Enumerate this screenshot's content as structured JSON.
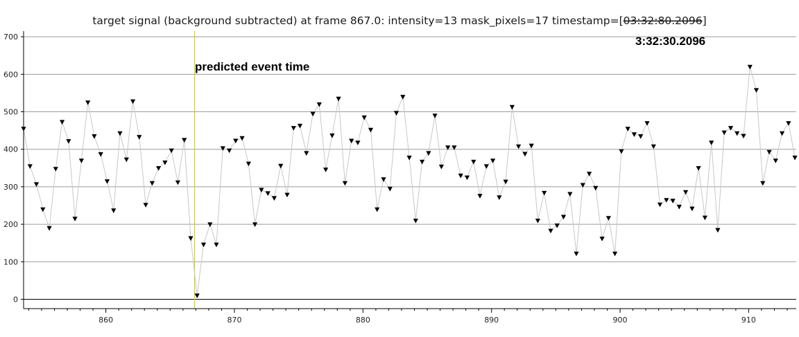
{
  "chart_data": {
    "type": "scatter",
    "title_prefix": "target signal (background subtracted) at frame 867.0: intensity=13 mask_pixels=17 timestamp=[",
    "title_struck": "03:32:80.2096",
    "title_suffix": "]",
    "xlabel": "",
    "ylabel": "",
    "xlim": [
      853.6,
      913.7
    ],
    "ylim": [
      -25,
      715
    ],
    "xticks": [
      860,
      870,
      880,
      890,
      900,
      910
    ],
    "yticks": [
      0,
      100,
      200,
      300,
      400,
      500,
      600,
      700
    ],
    "grid": true,
    "marker": "triangle-down",
    "line_color": "#c8c8c8",
    "marker_color": "#000000",
    "event_line": {
      "x": 866.9,
      "color": "#c8c860",
      "label": "predicted event time"
    },
    "annotation": "3:32:30.2096",
    "x": [
      853.6,
      854.1,
      854.6,
      855.1,
      855.6,
      856.1,
      856.6,
      857.1,
      857.6,
      858.1,
      858.6,
      859.1,
      859.6,
      860.1,
      860.6,
      861.1,
      861.6,
      862.1,
      862.6,
      863.1,
      863.6,
      864.1,
      864.6,
      865.1,
      865.6,
      866.1,
      866.6,
      867.1,
      867.6,
      868.1,
      868.6,
      869.1,
      869.6,
      870.1,
      870.6,
      871.1,
      871.6,
      872.1,
      872.6,
      873.1,
      873.6,
      874.1,
      874.6,
      875.1,
      875.6,
      876.1,
      876.6,
      877.1,
      877.6,
      878.1,
      878.6,
      879.1,
      879.6,
      880.1,
      880.6,
      881.1,
      881.6,
      882.1,
      882.6,
      883.1,
      883.6,
      884.1,
      884.6,
      885.1,
      885.6,
      886.1,
      886.6,
      887.1,
      887.6,
      888.1,
      888.6,
      889.1,
      889.6,
      890.1,
      890.6,
      891.1,
      891.6,
      892.1,
      892.6,
      893.1,
      893.6,
      894.1,
      894.6,
      895.1,
      895.6,
      896.1,
      896.6,
      897.1,
      897.6,
      898.1,
      898.6,
      899.1,
      899.6,
      900.1,
      900.6,
      901.1,
      901.6,
      902.1,
      902.6,
      903.1,
      903.6,
      904.1,
      904.6,
      905.1,
      905.6,
      906.1,
      906.6,
      907.1,
      907.6,
      908.1,
      908.6,
      909.1,
      909.6,
      910.1,
      910.6,
      911.1,
      911.6,
      912.1,
      912.6,
      913.1,
      913.6
    ],
    "y": [
      455,
      355,
      307,
      240,
      190,
      348,
      473,
      422,
      215,
      370,
      525,
      435,
      387,
      315,
      237,
      443,
      373,
      528,
      433,
      252,
      310,
      350,
      365,
      397,
      312,
      425,
      163,
      10,
      146,
      200,
      146,
      403,
      397,
      423,
      430,
      362,
      200,
      292,
      283,
      270,
      356,
      279,
      457,
      463,
      390,
      495,
      520,
      346,
      437,
      535,
      310,
      423,
      418,
      485,
      452,
      240,
      320,
      295,
      497,
      540,
      378,
      210,
      367,
      390,
      490,
      354,
      405,
      405,
      330,
      325,
      367,
      276,
      355,
      370,
      272,
      314,
      513,
      408,
      388,
      410,
      210,
      284,
      183,
      197,
      220,
      281,
      122,
      305,
      335,
      297,
      162,
      217,
      122,
      395,
      455,
      440,
      435,
      470,
      408,
      253,
      265,
      263,
      247,
      286,
      242,
      350,
      218,
      418,
      185,
      445,
      457,
      443,
      436,
      620,
      558,
      310,
      393,
      370,
      443,
      470,
      378
    ]
  }
}
